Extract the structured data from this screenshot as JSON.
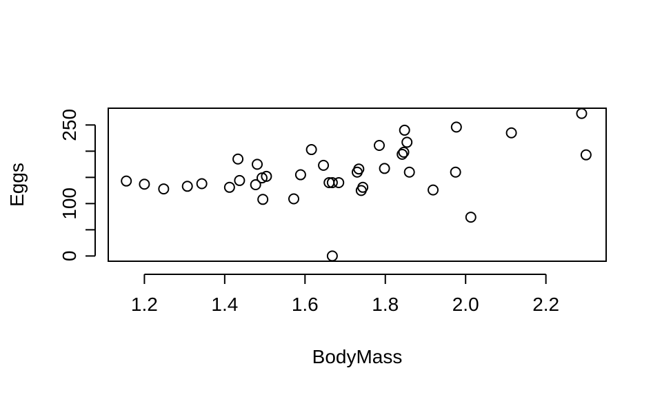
{
  "chart_data": {
    "type": "scatter",
    "title": "",
    "xlabel": "BodyMass",
    "ylabel": "Eggs",
    "xlim": [
      1.11,
      2.35
    ],
    "ylim": [
      -10,
      282
    ],
    "x_ticks": [
      1.2,
      1.4,
      1.6,
      1.8,
      2.0,
      2.2
    ],
    "x_tick_labels": [
      "1.2",
      "1.4",
      "1.6",
      "1.8",
      "2.0",
      "2.2"
    ],
    "y_ticks": [
      0,
      50,
      100,
      150,
      200,
      250
    ],
    "y_tick_labels": [
      "0",
      "",
      "100",
      "",
      "",
      "250"
    ],
    "grid": false,
    "marker": "open-circle",
    "points": [
      {
        "x": 1.155,
        "y": 143
      },
      {
        "x": 1.2,
        "y": 137
      },
      {
        "x": 1.248,
        "y": 128
      },
      {
        "x": 1.307,
        "y": 133
      },
      {
        "x": 1.343,
        "y": 138
      },
      {
        "x": 1.412,
        "y": 131
      },
      {
        "x": 1.433,
        "y": 185
      },
      {
        "x": 1.437,
        "y": 144
      },
      {
        "x": 1.477,
        "y": 136
      },
      {
        "x": 1.481,
        "y": 175
      },
      {
        "x": 1.493,
        "y": 149
      },
      {
        "x": 1.495,
        "y": 108
      },
      {
        "x": 1.504,
        "y": 152
      },
      {
        "x": 1.572,
        "y": 109
      },
      {
        "x": 1.589,
        "y": 155
      },
      {
        "x": 1.616,
        "y": 203
      },
      {
        "x": 1.646,
        "y": 173
      },
      {
        "x": 1.66,
        "y": 140
      },
      {
        "x": 1.668,
        "y": 140
      },
      {
        "x": 1.668,
        "y": 0
      },
      {
        "x": 1.684,
        "y": 140
      },
      {
        "x": 1.73,
        "y": 160
      },
      {
        "x": 1.734,
        "y": 166
      },
      {
        "x": 1.74,
        "y": 125
      },
      {
        "x": 1.744,
        "y": 131
      },
      {
        "x": 1.785,
        "y": 211
      },
      {
        "x": 1.798,
        "y": 167
      },
      {
        "x": 1.842,
        "y": 194
      },
      {
        "x": 1.846,
        "y": 198
      },
      {
        "x": 1.848,
        "y": 240
      },
      {
        "x": 1.854,
        "y": 217
      },
      {
        "x": 1.86,
        "y": 160
      },
      {
        "x": 1.919,
        "y": 126
      },
      {
        "x": 1.975,
        "y": 160
      },
      {
        "x": 1.977,
        "y": 246
      },
      {
        "x": 2.013,
        "y": 74
      },
      {
        "x": 2.114,
        "y": 235
      },
      {
        "x": 2.289,
        "y": 272
      },
      {
        "x": 2.3,
        "y": 193
      }
    ]
  }
}
